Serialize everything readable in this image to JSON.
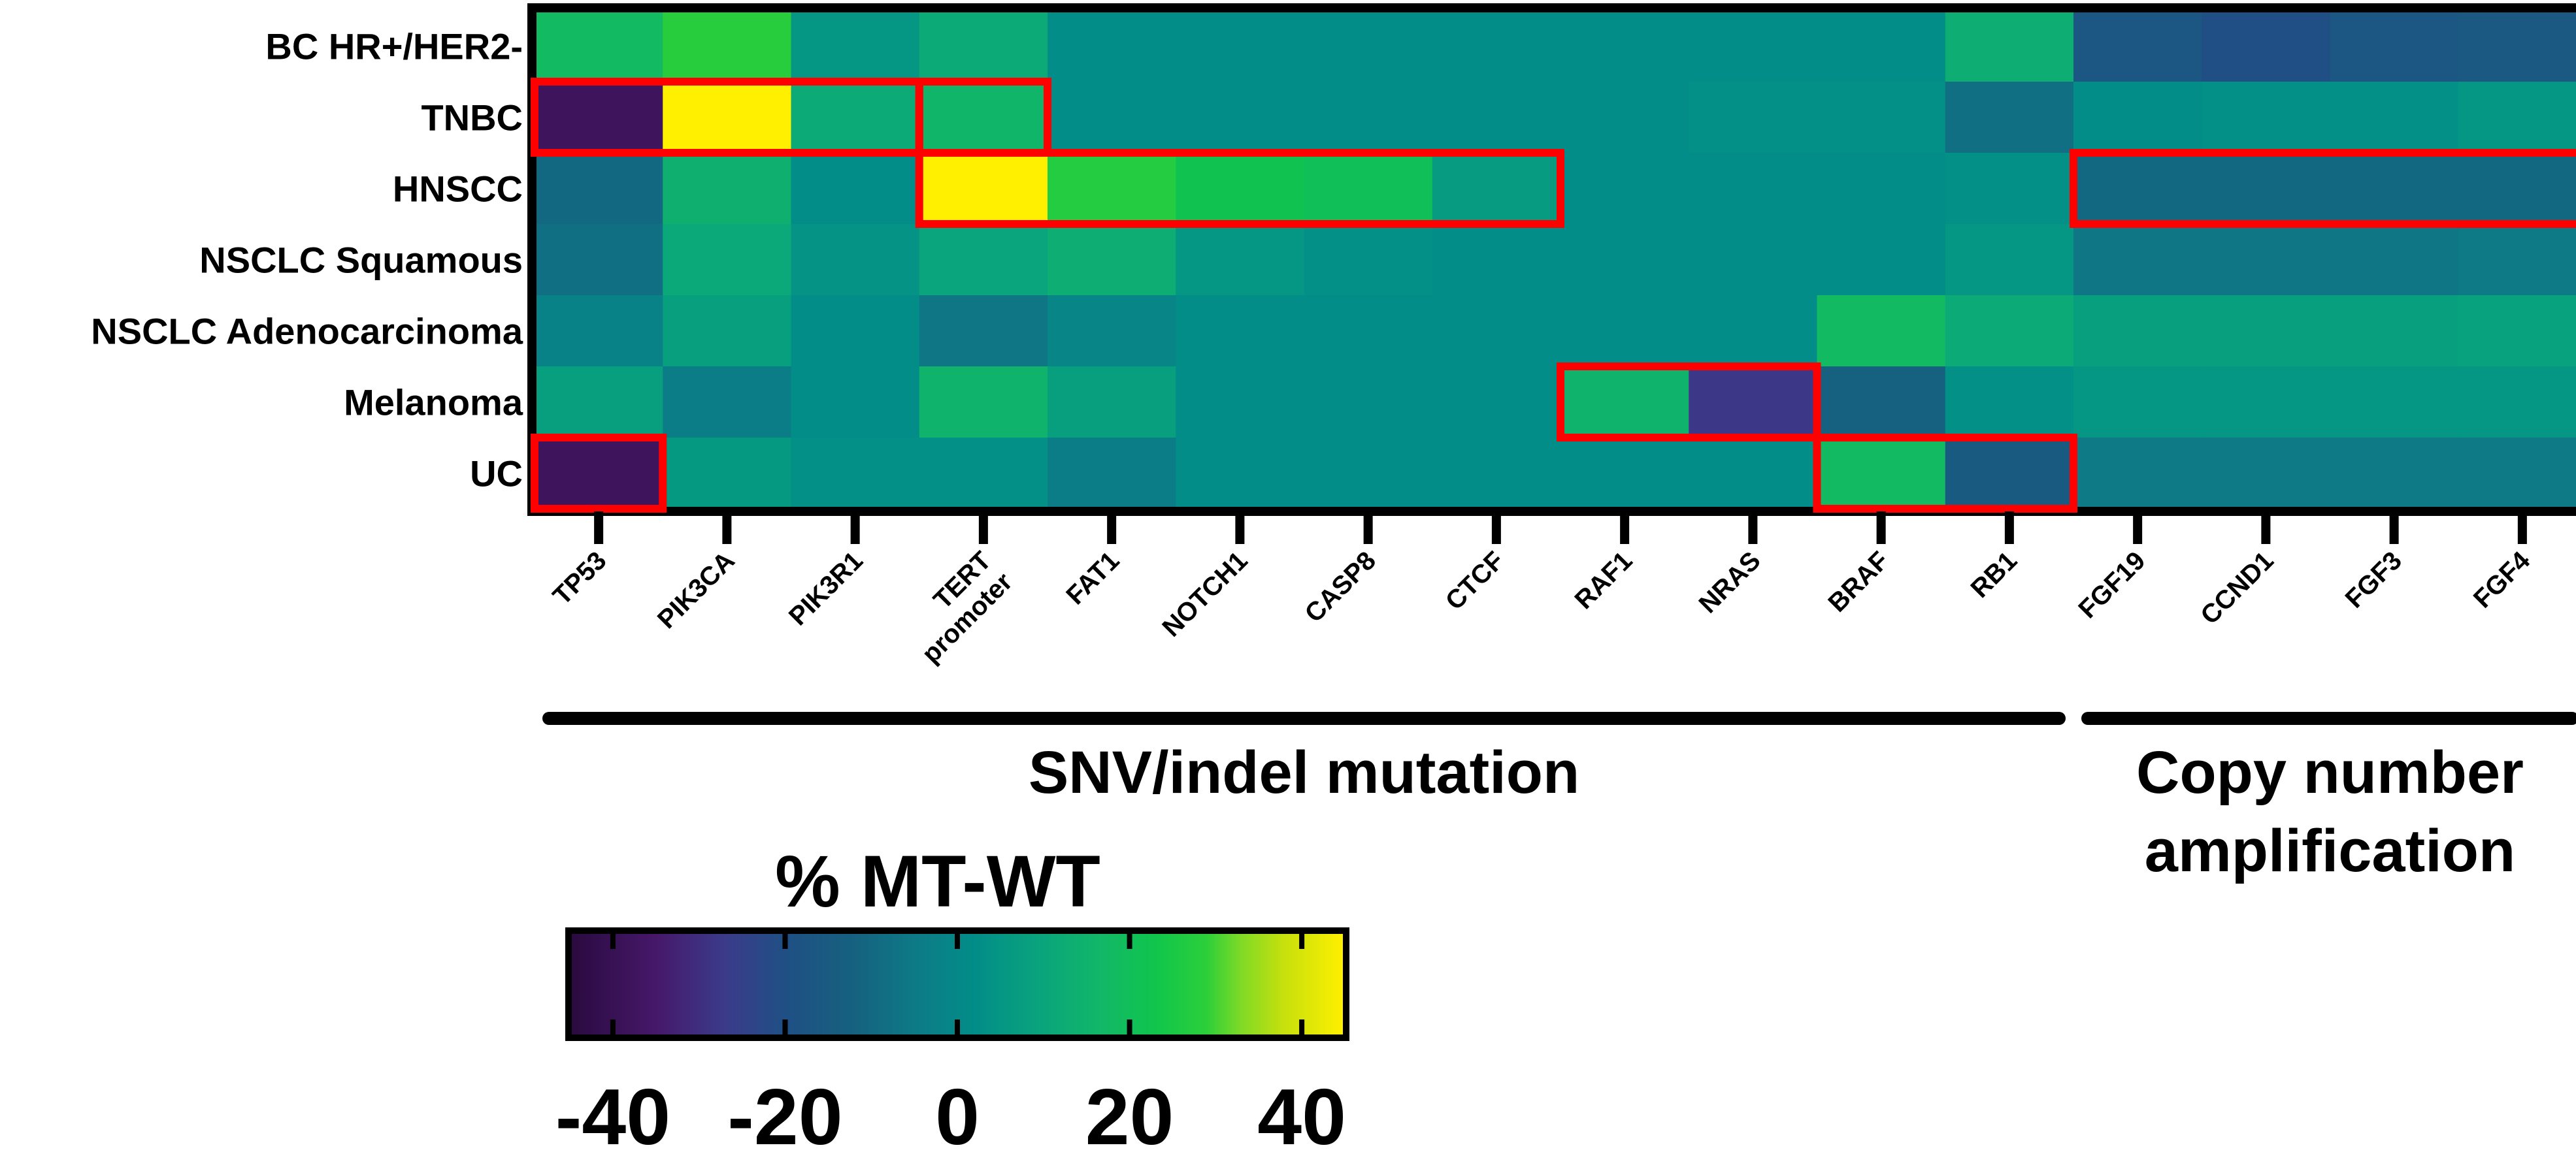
{
  "chart_data": {
    "type": "heatmap",
    "rows": [
      "BC HR+/HER2-",
      "TNBC",
      "HNSCC",
      "NSCLC Squamous",
      "NSCLC Adenocarcinoma",
      "Melanoma",
      "UC"
    ],
    "columns": [
      {
        "label": "TP53"
      },
      {
        "label": "PIK3CA"
      },
      {
        "label": "PIK3R1"
      },
      {
        "label": "TERT",
        "label2": "promoter"
      },
      {
        "label": "FAT1"
      },
      {
        "label": "NOTCH1"
      },
      {
        "label": "CASP8"
      },
      {
        "label": "CTCF"
      },
      {
        "label": "RAF1"
      },
      {
        "label": "NRAS"
      },
      {
        "label": "BRAF"
      },
      {
        "label": "RB1"
      },
      {
        "label": "FGF19"
      },
      {
        "label": "CCND1"
      },
      {
        "label": "FGF3"
      },
      {
        "label": "FGF4"
      }
    ],
    "values": [
      [
        18,
        28,
        5,
        12,
        2,
        2,
        2,
        2,
        2,
        2,
        2,
        13,
        -17,
        -20,
        -17,
        -16
      ],
      [
        -38,
        45,
        12,
        16,
        2,
        2,
        2,
        2,
        2,
        3,
        3,
        -8,
        2,
        3,
        3,
        5
      ],
      [
        -10,
        14,
        2,
        45,
        27,
        22,
        20,
        7,
        2,
        2,
        2,
        3,
        -10,
        -10,
        -10,
        -10
      ],
      [
        -8,
        11,
        4,
        10,
        13,
        5,
        3,
        2,
        2,
        2,
        2,
        5,
        -6,
        -6,
        -6,
        -5
      ],
      [
        -2,
        8,
        2,
        -6,
        -1,
        2,
        2,
        2,
        2,
        2,
        18,
        12,
        8,
        8,
        8,
        9
      ],
      [
        8,
        -4,
        2,
        15,
        8,
        2,
        2,
        2,
        15,
        -28,
        -12,
        3,
        5,
        5,
        5,
        5
      ],
      [
        -38,
        6,
        3,
        3,
        -4,
        2,
        2,
        2,
        2,
        2,
        18,
        -15,
        -5,
        -5,
        -5,
        -5
      ]
    ],
    "highlights": [
      {
        "row": 1,
        "col_start": 0,
        "col_end": 2
      },
      {
        "row": 1,
        "col_start": 3,
        "col_end": 3
      },
      {
        "row": 2,
        "col_start": 3,
        "col_end": 7
      },
      {
        "row": 2,
        "col_start": 12,
        "col_end": 15
      },
      {
        "row": 5,
        "col_start": 8,
        "col_end": 9
      },
      {
        "row": 6,
        "col_start": 0,
        "col_end": 0
      },
      {
        "row": 6,
        "col_start": 10,
        "col_end": 11
      }
    ],
    "highlight_color": "#ff0000",
    "groups": [
      {
        "label_lines": [
          "SNV/indel mutation"
        ],
        "col_start": 0,
        "col_end": 11
      },
      {
        "label_lines": [
          "Copy number",
          "amplification"
        ],
        "col_start": 12,
        "col_end": 15
      }
    ],
    "colorbar": {
      "title": "% MT-WT",
      "min": -45,
      "max": 45,
      "ticks": [
        -40,
        -20,
        0,
        20,
        40
      ],
      "tick_labels": [
        "-40",
        "-20",
        "0",
        "20",
        "40"
      ],
      "stops": [
        {
          "value": -45,
          "color": "#2a0a3e"
        },
        {
          "value": -35,
          "color": "#46186a"
        },
        {
          "value": -27,
          "color": "#3b3b8a"
        },
        {
          "value": -20,
          "color": "#1f4f84"
        },
        {
          "value": -12,
          "color": "#16617f"
        },
        {
          "value": -5,
          "color": "#0d7a86"
        },
        {
          "value": 2,
          "color": "#028d88"
        },
        {
          "value": 10,
          "color": "#0aa57c"
        },
        {
          "value": 17,
          "color": "#12b866"
        },
        {
          "value": 23,
          "color": "#10c54c"
        },
        {
          "value": 29,
          "color": "#2ccf3a"
        },
        {
          "value": 33,
          "color": "#80da26"
        },
        {
          "value": 38,
          "color": "#c8e00c"
        },
        {
          "value": 45,
          "color": "#fff000"
        }
      ]
    }
  }
}
